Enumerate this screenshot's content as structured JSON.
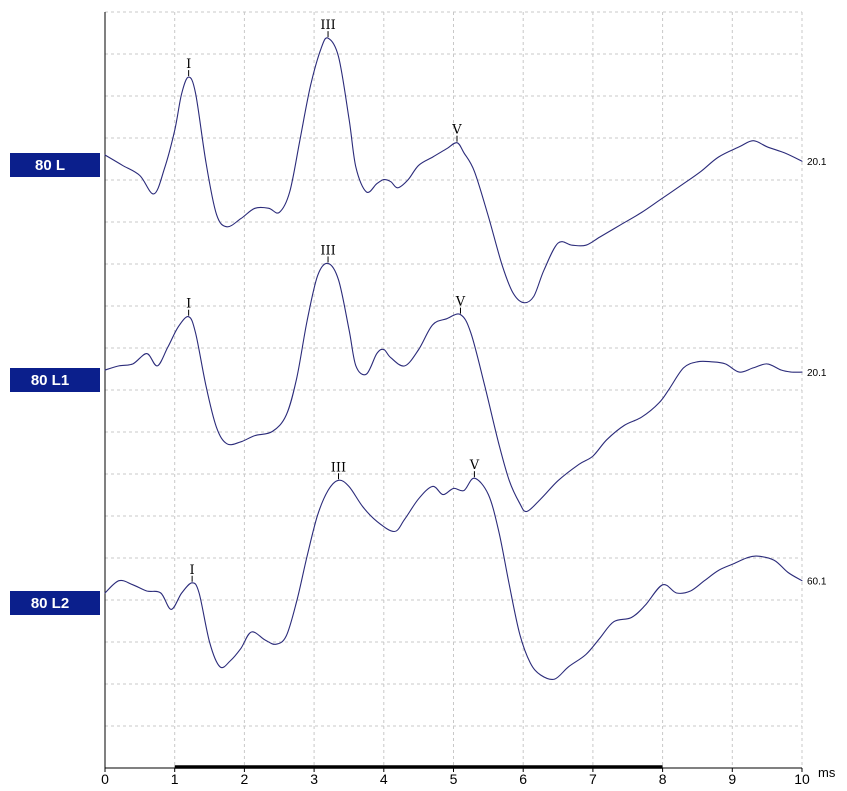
{
  "chart_data": {
    "type": "line",
    "title": "",
    "xlabel": "ms",
    "ylabel": "",
    "xlim": [
      0,
      10
    ],
    "x_ticks": [
      "0",
      "1",
      "2",
      "3",
      "4",
      "5",
      "6",
      "7",
      "8",
      "9",
      "10"
    ],
    "grid": true,
    "analysis_window": [
      1,
      8
    ],
    "series": [
      {
        "name": "80 L",
        "gain": "20.1",
        "points": [
          [
            0,
            0.0
          ],
          [
            0.25,
            -0.25
          ],
          [
            0.5,
            -0.5
          ],
          [
            0.7,
            -0.95
          ],
          [
            0.85,
            -0.35
          ],
          [
            1.0,
            0.6
          ],
          [
            1.1,
            1.5
          ],
          [
            1.2,
            1.9
          ],
          [
            1.3,
            1.5
          ],
          [
            1.45,
            -0.2
          ],
          [
            1.6,
            -1.45
          ],
          [
            1.75,
            -1.75
          ],
          [
            1.95,
            -1.55
          ],
          [
            2.15,
            -1.3
          ],
          [
            2.35,
            -1.3
          ],
          [
            2.5,
            -1.4
          ],
          [
            2.65,
            -0.9
          ],
          [
            2.8,
            0.4
          ],
          [
            2.95,
            1.7
          ],
          [
            3.1,
            2.6
          ],
          [
            3.2,
            2.85
          ],
          [
            3.35,
            2.4
          ],
          [
            3.5,
            0.9
          ],
          [
            3.6,
            -0.3
          ],
          [
            3.75,
            -0.9
          ],
          [
            3.9,
            -0.7
          ],
          [
            4.0,
            -0.6
          ],
          [
            4.1,
            -0.65
          ],
          [
            4.2,
            -0.8
          ],
          [
            4.35,
            -0.6
          ],
          [
            4.5,
            -0.25
          ],
          [
            4.7,
            -0.05
          ],
          [
            4.9,
            0.15
          ],
          [
            5.05,
            0.3
          ],
          [
            5.15,
            0.05
          ],
          [
            5.3,
            -0.4
          ],
          [
            5.5,
            -1.5
          ],
          [
            5.7,
            -2.7
          ],
          [
            5.85,
            -3.35
          ],
          [
            6.0,
            -3.6
          ],
          [
            6.15,
            -3.45
          ],
          [
            6.3,
            -2.8
          ],
          [
            6.5,
            -2.15
          ],
          [
            6.7,
            -2.2
          ],
          [
            6.9,
            -2.2
          ],
          [
            7.1,
            -2.0
          ],
          [
            7.4,
            -1.7
          ],
          [
            7.7,
            -1.4
          ],
          [
            8.0,
            -1.05
          ],
          [
            8.3,
            -0.7
          ],
          [
            8.55,
            -0.4
          ],
          [
            8.8,
            -0.05
          ],
          [
            9.1,
            0.2
          ],
          [
            9.3,
            0.35
          ],
          [
            9.5,
            0.2
          ],
          [
            9.75,
            0.05
          ],
          [
            10.0,
            -0.15
          ]
        ],
        "peaks": [
          {
            "label": "I",
            "x": 1.2
          },
          {
            "label": "III",
            "x": 3.2
          },
          {
            "label": "V",
            "x": 5.05
          }
        ]
      },
      {
        "name": "80 L1",
        "gain": "20.1",
        "points": [
          [
            0,
            0.0
          ],
          [
            0.2,
            0.1
          ],
          [
            0.4,
            0.15
          ],
          [
            0.6,
            0.4
          ],
          [
            0.75,
            0.1
          ],
          [
            0.9,
            0.55
          ],
          [
            1.05,
            1.05
          ],
          [
            1.2,
            1.3
          ],
          [
            1.3,
            0.9
          ],
          [
            1.45,
            -0.4
          ],
          [
            1.6,
            -1.4
          ],
          [
            1.75,
            -1.8
          ],
          [
            1.95,
            -1.75
          ],
          [
            2.15,
            -1.6
          ],
          [
            2.4,
            -1.5
          ],
          [
            2.6,
            -1.1
          ],
          [
            2.75,
            -0.2
          ],
          [
            2.9,
            1.2
          ],
          [
            3.05,
            2.3
          ],
          [
            3.2,
            2.6
          ],
          [
            3.35,
            2.2
          ],
          [
            3.5,
            1.0
          ],
          [
            3.6,
            0.1
          ],
          [
            3.75,
            -0.1
          ],
          [
            3.9,
            0.4
          ],
          [
            4.0,
            0.5
          ],
          [
            4.1,
            0.3
          ],
          [
            4.3,
            0.1
          ],
          [
            4.5,
            0.5
          ],
          [
            4.7,
            1.1
          ],
          [
            4.9,
            1.25
          ],
          [
            5.1,
            1.35
          ],
          [
            5.25,
            0.9
          ],
          [
            5.45,
            -0.4
          ],
          [
            5.65,
            -1.8
          ],
          [
            5.8,
            -2.7
          ],
          [
            5.95,
            -3.25
          ],
          [
            6.05,
            -3.45
          ],
          [
            6.25,
            -3.15
          ],
          [
            6.5,
            -2.7
          ],
          [
            6.8,
            -2.3
          ],
          [
            7.0,
            -2.1
          ],
          [
            7.2,
            -1.7
          ],
          [
            7.45,
            -1.35
          ],
          [
            7.7,
            -1.15
          ],
          [
            7.95,
            -0.8
          ],
          [
            8.1,
            -0.45
          ],
          [
            8.3,
            0.05
          ],
          [
            8.5,
            0.2
          ],
          [
            8.7,
            0.2
          ],
          [
            8.9,
            0.15
          ],
          [
            9.1,
            -0.05
          ],
          [
            9.3,
            0.05
          ],
          [
            9.5,
            0.15
          ],
          [
            9.7,
            0.0
          ],
          [
            9.85,
            -0.05
          ],
          [
            10.0,
            -0.05
          ]
        ],
        "peaks": [
          {
            "label": "I",
            "x": 1.2
          },
          {
            "label": "III",
            "x": 3.2
          },
          {
            "label": "V",
            "x": 5.1
          }
        ]
      },
      {
        "name": "80 L2",
        "gain": "60.1",
        "points": [
          [
            0,
            0.0
          ],
          [
            0.2,
            0.3
          ],
          [
            0.4,
            0.2
          ],
          [
            0.6,
            0.05
          ],
          [
            0.8,
            0.0
          ],
          [
            0.95,
            -0.4
          ],
          [
            1.1,
            0.0
          ],
          [
            1.25,
            0.25
          ],
          [
            1.35,
            0.0
          ],
          [
            1.5,
            -1.2
          ],
          [
            1.65,
            -1.8
          ],
          [
            1.8,
            -1.65
          ],
          [
            1.95,
            -1.35
          ],
          [
            2.1,
            -0.95
          ],
          [
            2.3,
            -1.15
          ],
          [
            2.45,
            -1.25
          ],
          [
            2.6,
            -1.05
          ],
          [
            2.75,
            -0.2
          ],
          [
            2.9,
            0.9
          ],
          [
            3.05,
            1.9
          ],
          [
            3.2,
            2.5
          ],
          [
            3.35,
            2.75
          ],
          [
            3.5,
            2.6
          ],
          [
            3.7,
            2.1
          ],
          [
            3.9,
            1.75
          ],
          [
            4.15,
            1.5
          ],
          [
            4.3,
            1.8
          ],
          [
            4.5,
            2.3
          ],
          [
            4.7,
            2.6
          ],
          [
            4.85,
            2.4
          ],
          [
            5.0,
            2.55
          ],
          [
            5.15,
            2.5
          ],
          [
            5.3,
            2.8
          ],
          [
            5.5,
            2.4
          ],
          [
            5.65,
            1.5
          ],
          [
            5.8,
            0.2
          ],
          [
            5.95,
            -1.0
          ],
          [
            6.1,
            -1.7
          ],
          [
            6.25,
            -2.0
          ],
          [
            6.45,
            -2.1
          ],
          [
            6.65,
            -1.8
          ],
          [
            6.9,
            -1.5
          ],
          [
            7.1,
            -1.1
          ],
          [
            7.3,
            -0.7
          ],
          [
            7.55,
            -0.6
          ],
          [
            7.75,
            -0.3
          ],
          [
            8.0,
            0.2
          ],
          [
            8.2,
            0.0
          ],
          [
            8.4,
            0.05
          ],
          [
            8.6,
            0.3
          ],
          [
            8.8,
            0.55
          ],
          [
            9.0,
            0.7
          ],
          [
            9.2,
            0.85
          ],
          [
            9.35,
            0.9
          ],
          [
            9.6,
            0.8
          ],
          [
            9.8,
            0.5
          ],
          [
            10.0,
            0.3
          ]
        ],
        "peaks": [
          {
            "label": "I",
            "x": 1.25
          },
          {
            "label": "III",
            "x": 3.35
          },
          {
            "label": "V",
            "x": 5.3
          }
        ]
      }
    ]
  }
}
